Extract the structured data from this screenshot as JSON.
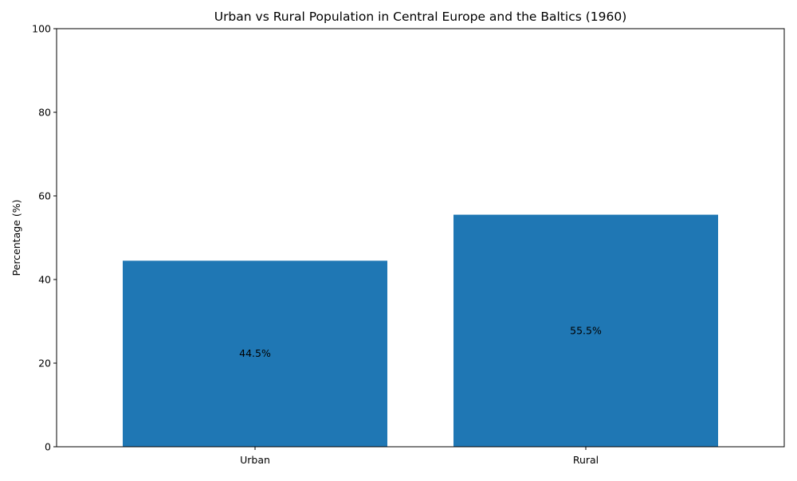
{
  "chart_data": {
    "type": "bar",
    "title": "Urban vs Rural Population in Central Europe and the Baltics (1960)",
    "xlabel": "",
    "ylabel": "Percentage (%)",
    "categories": [
      "Urban",
      "Rural"
    ],
    "values": [
      44.5,
      55.5
    ],
    "data_labels": [
      "44.5%",
      "55.5%"
    ],
    "ylim": [
      0,
      100
    ],
    "yticks": [
      0,
      20,
      40,
      60,
      80,
      100
    ],
    "bar_color": "#1f77b4",
    "grid": false,
    "legend": "none"
  }
}
